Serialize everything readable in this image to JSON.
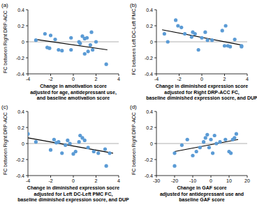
{
  "chart_data": [
    {
      "type": "scatter",
      "title": "(a)",
      "y_label": "FC between Right DRP-ACC",
      "x_label": [
        "Change in amotivation score",
        "adjusted for age, antidepressant use,",
        "and baseline amotivation score"
      ],
      "x": [
        -3.3,
        -2.5,
        -2.3,
        -2.1,
        -2.0,
        -1.6,
        -1.3,
        -1.0,
        -0.2,
        -0.2,
        0.5,
        0.6,
        0.8,
        1.0,
        1.0,
        1.2,
        1.3,
        1.5,
        1.7,
        2.0,
        1.6,
        2.9
      ],
      "values": [
        0.02,
        0.1,
        -0.07,
        -0.08,
        0.08,
        0.03,
        -0.1,
        -0.11,
        0.05,
        -0.1,
        0.0,
        -0.02,
        0.07,
        0.04,
        -0.15,
        0.05,
        -0.12,
        -0.04,
        -0.1,
        0.0,
        0.12,
        -0.28
      ],
      "xlim": [
        -4,
        4
      ],
      "xticks": [
        -4,
        -2,
        0,
        2,
        4
      ],
      "ylim": [
        -0.4,
        0.4
      ],
      "yticks": [
        -0.4,
        -0.2,
        0,
        0.2,
        0.4
      ],
      "color": "#5b9bd5",
      "marker": "circle",
      "trend_line": {
        "x": [
          -3.3,
          3.0
        ],
        "y": [
          0.03,
          -0.1
        ]
      },
      "reference_line": 0
    },
    {
      "type": "scatter",
      "title": "(b)",
      "y_label": "FC between Left DC-Left PMC",
      "x_label": [
        "Change in diminished expression score",
        "adjusted for Right DRP-ACC FC,",
        "baseline diminished expression socre, and DUP"
      ],
      "x": [
        -3.3,
        -2.3,
        -2.1,
        -1.8,
        -1.5,
        -0.9,
        -0.8,
        -0.6,
        -0.3,
        0.0,
        0.3,
        0.5,
        0.9,
        1.8,
        2.0,
        2.1,
        2.3,
        2.5,
        2.9,
        3.5,
        3.5,
        -3.0
      ],
      "values": [
        0.1,
        0.27,
        0.2,
        0.18,
        0.1,
        0.06,
        0.12,
        0.1,
        -0.1,
        0.05,
        0.12,
        0.02,
        0.02,
        0.14,
        -0.05,
        0.2,
        -0.05,
        -0.06,
        0.03,
        -0.05,
        -0.06,
        0.0
      ],
      "xlim": [
        -4,
        4
      ],
      "xticks": [
        -4,
        -2,
        0,
        2,
        4
      ],
      "ylim": [
        -0.4,
        0.4
      ],
      "yticks": [
        -0.4,
        -0.2,
        0,
        0.2,
        0.4
      ],
      "color": "#5b9bd5",
      "marker": "circle",
      "trend_line": {
        "x": [
          -3.5,
          3.5
        ],
        "y": [
          0.15,
          -0.04
        ]
      },
      "reference_line": 0
    },
    {
      "type": "scatter",
      "title": "(c)",
      "y_label": "FC between Right DRP-ACC",
      "x_label": [
        "Change in diminished expression socre",
        "adjusted for Left DC-Left PMC FC,",
        "baseline diminished expression socre, and DUP"
      ],
      "x": [
        -4.0,
        -3.3,
        -2.0,
        -1.7,
        -1.5,
        -1.3,
        -1.0,
        -0.7,
        -0.5,
        -0.3,
        0.0,
        0.2,
        0.5,
        0.6,
        0.8,
        1.0,
        1.3,
        1.8,
        2.2,
        2.8,
        3.2,
        2.9
      ],
      "values": [
        0.12,
        0.02,
        -0.08,
        0.05,
        0.01,
        0.02,
        -0.12,
        -0.02,
        0.04,
        0.0,
        -0.13,
        -0.1,
        0.02,
        0.1,
        0.07,
        0.04,
        -0.05,
        -0.1,
        -0.12,
        -0.07,
        -0.12,
        -0.28
      ],
      "xlim": [
        -4,
        4
      ],
      "xticks": [
        -4,
        -2,
        0,
        2,
        4
      ],
      "ylim": [
        -0.4,
        0.4
      ],
      "yticks": [
        -0.4,
        -0.2,
        0,
        0.2,
        0.4
      ],
      "color": "#5b9bd5",
      "marker": "circle",
      "trend_line": {
        "x": [
          -4.0,
          3.5
        ],
        "y": [
          0.07,
          -0.12
        ]
      },
      "reference_line": 0
    },
    {
      "type": "scatter",
      "title": "(d)",
      "y_label": "FC between Right DRP-ACC",
      "x_label": [
        "Change in GAF score",
        "adjusted for antidepressant use and",
        "baseline GAF score"
      ],
      "x": [
        -20,
        -20,
        -16,
        -13,
        -10,
        -8,
        -6,
        -4,
        -3,
        -2,
        -1,
        0,
        1,
        2,
        3,
        5,
        8,
        10,
        11,
        12,
        13,
        14
      ],
      "values": [
        -0.28,
        -0.12,
        -0.02,
        0.05,
        -0.15,
        -0.1,
        -0.05,
        0.02,
        0.07,
        0.11,
        -0.05,
        0.05,
        -0.12,
        0.1,
        0.0,
        0.02,
        0.05,
        -0.1,
        -0.12,
        0.05,
        0.07,
        0.12
      ],
      "xlim": [
        -30,
        20
      ],
      "xticks": [
        -30,
        -20,
        -10,
        0,
        10,
        20
      ],
      "ylim": [
        -0.4,
        0.4
      ],
      "yticks": [
        -0.4,
        -0.2,
        0,
        0.2,
        0.4
      ],
      "color": "#5b9bd5",
      "marker": "circle",
      "trend_line": {
        "x": [
          -20,
          15
        ],
        "y": [
          -0.1,
          0.05
        ]
      },
      "reference_line": 0
    }
  ]
}
